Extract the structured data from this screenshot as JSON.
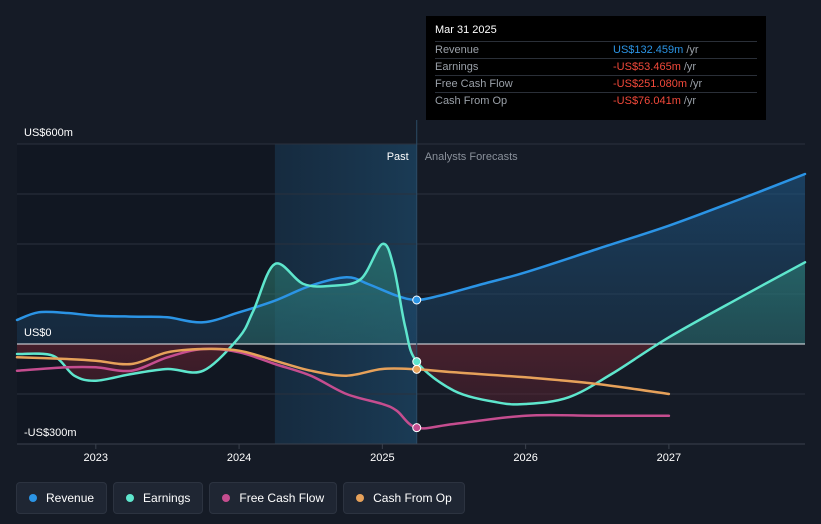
{
  "chart_data": {
    "type": "line",
    "y_unit_labels": {
      "top": "US$600m",
      "zero": "US$0",
      "bottom": "-US$300m"
    },
    "ylim": [
      -300,
      600
    ],
    "xlim": [
      2022.45,
      2027.95
    ],
    "x_ticks": [
      {
        "value": 2023,
        "label": "2023"
      },
      {
        "value": 2024,
        "label": "2024"
      },
      {
        "value": 2025,
        "label": "2025"
      },
      {
        "value": 2026,
        "label": "2026"
      },
      {
        "value": 2027,
        "label": "2027"
      }
    ],
    "past_label": "Past",
    "forecast_label": "Analysts Forecasts",
    "present_x": 2025.24,
    "highlight_start_x": 2024.25,
    "grid": true,
    "legend_position": "bottom-left",
    "series": [
      {
        "name": "Revenue",
        "color": "#2b94e5",
        "fill": true,
        "points": [
          [
            2022.45,
            72
          ],
          [
            2022.6,
            95
          ],
          [
            2022.8,
            93
          ],
          [
            2023,
            85
          ],
          [
            2023.3,
            82
          ],
          [
            2023.5,
            80
          ],
          [
            2023.75,
            65
          ],
          [
            2024,
            95
          ],
          [
            2024.25,
            130
          ],
          [
            2024.5,
            175
          ],
          [
            2024.75,
            200
          ],
          [
            2024.9,
            180
          ],
          [
            2025.1,
            145
          ],
          [
            2025.24,
            132
          ],
          [
            2025.4,
            145
          ],
          [
            2025.7,
            180
          ],
          [
            2026,
            215
          ],
          [
            2026.5,
            285
          ],
          [
            2027,
            355
          ],
          [
            2027.5,
            435
          ],
          [
            2027.95,
            510
          ]
        ]
      },
      {
        "name": "Earnings",
        "color": "#5ee6cd",
        "fill": true,
        "points": [
          [
            2022.45,
            -30
          ],
          [
            2022.7,
            -35
          ],
          [
            2022.85,
            -95
          ],
          [
            2023,
            -110
          ],
          [
            2023.25,
            -90
          ],
          [
            2023.5,
            -75
          ],
          [
            2023.75,
            -80
          ],
          [
            2024,
            20
          ],
          [
            2024.1,
            100
          ],
          [
            2024.25,
            240
          ],
          [
            2024.45,
            180
          ],
          [
            2024.65,
            175
          ],
          [
            2024.85,
            195
          ],
          [
            2025,
            300
          ],
          [
            2025.08,
            230
          ],
          [
            2025.16,
            50
          ],
          [
            2025.24,
            -53
          ],
          [
            2025.5,
            -140
          ],
          [
            2025.8,
            -175
          ],
          [
            2026,
            -180
          ],
          [
            2026.3,
            -160
          ],
          [
            2026.6,
            -90
          ],
          [
            2027,
            20
          ],
          [
            2027.5,
            140
          ],
          [
            2027.95,
            245
          ]
        ]
      },
      {
        "name": "Free Cash Flow",
        "color": "#c54d8f",
        "fill": false,
        "points": [
          [
            2022.45,
            -80
          ],
          [
            2022.8,
            -70
          ],
          [
            2023,
            -70
          ],
          [
            2023.25,
            -80
          ],
          [
            2023.5,
            -40
          ],
          [
            2023.75,
            -15
          ],
          [
            2024,
            -25
          ],
          [
            2024.25,
            -60
          ],
          [
            2024.5,
            -95
          ],
          [
            2024.75,
            -150
          ],
          [
            2025,
            -180
          ],
          [
            2025.1,
            -200
          ],
          [
            2025.24,
            -251
          ],
          [
            2025.5,
            -240
          ],
          [
            2026,
            -215
          ],
          [
            2026.5,
            -215
          ],
          [
            2027,
            -215
          ]
        ]
      },
      {
        "name": "Cash From Op",
        "color": "#e6a15a",
        "fill": false,
        "points": [
          [
            2022.45,
            -40
          ],
          [
            2022.8,
            -45
          ],
          [
            2023,
            -50
          ],
          [
            2023.25,
            -60
          ],
          [
            2023.5,
            -25
          ],
          [
            2023.75,
            -15
          ],
          [
            2024,
            -20
          ],
          [
            2024.25,
            -50
          ],
          [
            2024.5,
            -80
          ],
          [
            2024.75,
            -95
          ],
          [
            2025,
            -75
          ],
          [
            2025.24,
            -76
          ],
          [
            2025.5,
            -85
          ],
          [
            2026,
            -100
          ],
          [
            2026.5,
            -120
          ],
          [
            2027,
            -150
          ]
        ]
      }
    ],
    "markers": [
      {
        "series": "Revenue",
        "x": 2025.24,
        "y": 132
      },
      {
        "series": "Earnings",
        "x": 2025.24,
        "y": -53
      },
      {
        "series": "Free Cash Flow",
        "x": 2025.24,
        "y": -251
      },
      {
        "series": "Cash From Op",
        "x": 2025.24,
        "y": -76
      }
    ]
  },
  "tooltip": {
    "date": "Mar 31 2025",
    "rows": [
      {
        "label": "Revenue",
        "value": "US$132.459m",
        "unit": "/yr",
        "color": "#2b94e5"
      },
      {
        "label": "Earnings",
        "value": "-US$53.465m",
        "unit": "/yr",
        "color": "#f2493a"
      },
      {
        "label": "Free Cash Flow",
        "value": "-US$251.080m",
        "unit": "/yr",
        "color": "#f2493a"
      },
      {
        "label": "Cash From Op",
        "value": "-US$76.041m",
        "unit": "/yr",
        "color": "#f2493a"
      }
    ]
  },
  "legend": [
    {
      "label": "Revenue",
      "color": "#2b94e5"
    },
    {
      "label": "Earnings",
      "color": "#5ee6cd"
    },
    {
      "label": "Free Cash Flow",
      "color": "#c54d8f"
    },
    {
      "label": "Cash From Op",
      "color": "#e6a15a"
    }
  ]
}
